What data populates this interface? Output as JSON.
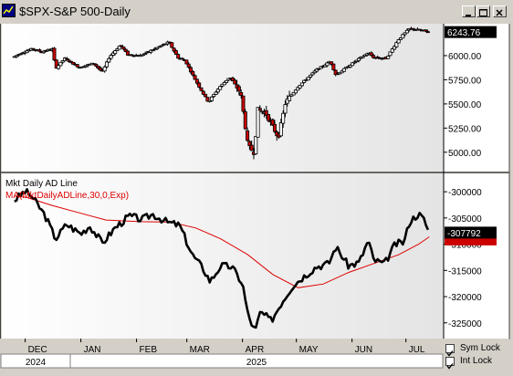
{
  "window": {
    "title": "$SPX-S&P 500-Daily",
    "buttons": [
      "minimize",
      "restore",
      "close"
    ]
  },
  "bottom": {
    "sym_lock": "Sym Lock",
    "int_lock": "Int Lock",
    "sym_lock_checked": true,
    "int_lock_checked": true
  },
  "colors": {
    "up_candle": "#ffffff",
    "down_candle": "#cc0000",
    "ad_line": "#000000",
    "ma_line": "#dd0000",
    "background": "#ffffff"
  },
  "chart_data": [
    {
      "type": "candlestick",
      "title": "$SPX-S&P 500-Daily",
      "ylim": [
        4800,
        6330
      ],
      "yticks": [
        5000,
        5250,
        5500,
        5750,
        6000
      ],
      "ytick_labels": [
        "5000.00",
        "5250.00",
        "5500.00",
        "5750.00",
        "6000.00"
      ],
      "last_value_label": "6243.76",
      "close_series": [
        [
          "2024-11-25",
          5990
        ],
        [
          "2024-11-29",
          6030
        ],
        [
          "2024-12-05",
          6070
        ],
        [
          "2024-12-10",
          6040
        ],
        [
          "2024-12-16",
          6070
        ],
        [
          "2024-12-18",
          5870
        ],
        [
          "2024-12-23",
          5970
        ],
        [
          "2024-12-31",
          5880
        ],
        [
          "2025-01-08",
          5920
        ],
        [
          "2025-01-13",
          5830
        ],
        [
          "2025-01-17",
          5990
        ],
        [
          "2025-01-23",
          6110
        ],
        [
          "2025-01-27",
          6010
        ],
        [
          "2025-02-03",
          6000
        ],
        [
          "2025-02-10",
          6060
        ],
        [
          "2025-02-19",
          6140
        ],
        [
          "2025-02-24",
          5980
        ],
        [
          "2025-02-28",
          5950
        ],
        [
          "2025-03-06",
          5740
        ],
        [
          "2025-03-10",
          5610
        ],
        [
          "2025-03-13",
          5520
        ],
        [
          "2025-03-19",
          5670
        ],
        [
          "2025-03-25",
          5780
        ],
        [
          "2025-03-31",
          5610
        ],
        [
          "2025-04-04",
          5070
        ],
        [
          "2025-04-08",
          4980
        ],
        [
          "2025-04-09",
          5450
        ],
        [
          "2025-04-14",
          5400
        ],
        [
          "2025-04-21",
          5150
        ],
        [
          "2025-04-25",
          5520
        ],
        [
          "2025-05-02",
          5680
        ],
        [
          "2025-05-12",
          5850
        ],
        [
          "2025-05-20",
          5940
        ],
        [
          "2025-05-23",
          5800
        ],
        [
          "2025-06-02",
          5930
        ],
        [
          "2025-06-10",
          6030
        ],
        [
          "2025-06-13",
          5980
        ],
        [
          "2025-06-20",
          5970
        ],
        [
          "2025-06-27",
          6170
        ],
        [
          "2025-07-03",
          6280
        ],
        [
          "2025-07-10",
          6260
        ],
        [
          "2025-07-14",
          6243.76
        ]
      ]
    },
    {
      "type": "line",
      "title": "Mkt Daily AD Line",
      "ylim": [
        -328000,
        -296500
      ],
      "yticks": [
        -300000,
        -305000,
        -310000,
        -315000,
        -320000,
        -325000
      ],
      "ytick_labels": [
        "-300000",
        "-305000",
        "-310000",
        "-315000",
        "-320000",
        "-325000"
      ],
      "last_value_label": "-307792",
      "series": [
        {
          "name": "Mkt Daily AD Line",
          "values": [
            [
              "2024-11-25",
              -301600
            ],
            [
              "2024-12-01",
              -299900
            ],
            [
              "2024-12-05",
              -301000
            ],
            [
              "2024-12-12",
              -304500
            ],
            [
              "2024-12-18",
              -309000
            ],
            [
              "2024-12-24",
              -306200
            ],
            [
              "2025-01-01",
              -308000
            ],
            [
              "2025-01-06",
              -306500
            ],
            [
              "2025-01-13",
              -309800
            ],
            [
              "2025-01-20",
              -306900
            ],
            [
              "2025-01-28",
              -304600
            ],
            [
              "2025-02-04",
              -305300
            ],
            [
              "2025-02-10",
              -304300
            ],
            [
              "2025-02-18",
              -305800
            ],
            [
              "2025-02-25",
              -306400
            ],
            [
              "2025-03-04",
              -312000
            ],
            [
              "2025-03-10",
              -314600
            ],
            [
              "2025-03-14",
              -317100
            ],
            [
              "2025-03-20",
              -314100
            ],
            [
              "2025-03-26",
              -314300
            ],
            [
              "2025-04-01",
              -317500
            ],
            [
              "2025-04-04",
              -323400
            ],
            [
              "2025-04-08",
              -326700
            ],
            [
              "2025-04-11",
              -322900
            ],
            [
              "2025-04-17",
              -324600
            ],
            [
              "2025-04-23",
              -321000
            ],
            [
              "2025-04-29",
              -317900
            ],
            [
              "2025-05-05",
              -316200
            ],
            [
              "2025-05-12",
              -314300
            ],
            [
              "2025-05-19",
              -313700
            ],
            [
              "2025-05-23",
              -310500
            ],
            [
              "2025-05-30",
              -314100
            ],
            [
              "2025-06-05",
              -313500
            ],
            [
              "2025-06-10",
              -309300
            ],
            [
              "2025-06-13",
              -313000
            ],
            [
              "2025-06-19",
              -313800
            ],
            [
              "2025-06-25",
              -310000
            ],
            [
              "2025-06-30",
              -309600
            ],
            [
              "2025-07-03",
              -305700
            ],
            [
              "2025-07-08",
              -304200
            ],
            [
              "2025-07-11",
              -305300
            ],
            [
              "2025-07-14",
              -307792
            ]
          ]
        },
        {
          "name": "MA(MktDailyADLine,30,0,Exp)",
          "values": [
            [
              "2024-11-25",
              -300800
            ],
            [
              "2024-12-02",
              -301100
            ],
            [
              "2024-12-16",
              -302600
            ],
            [
              "2025-01-01",
              -304100
            ],
            [
              "2025-01-15",
              -305400
            ],
            [
              "2025-02-03",
              -305700
            ],
            [
              "2025-02-20",
              -305800
            ],
            [
              "2025-03-06",
              -306900
            ],
            [
              "2025-03-20",
              -309000
            ],
            [
              "2025-04-04",
              -312000
            ],
            [
              "2025-04-18",
              -315800
            ],
            [
              "2025-05-02",
              -318300
            ],
            [
              "2025-05-16",
              -317600
            ],
            [
              "2025-05-30",
              -315400
            ],
            [
              "2025-06-13",
              -313700
            ],
            [
              "2025-06-27",
              -312000
            ],
            [
              "2025-07-08",
              -310000
            ],
            [
              "2025-07-14",
              -308600
            ]
          ]
        }
      ]
    }
  ],
  "x_axis": {
    "months": [
      "DEC",
      "JAN",
      "FEB",
      "MAR",
      "APR",
      "MAY",
      "JUN",
      "JUL"
    ],
    "years": [
      "2024",
      "2025"
    ]
  }
}
